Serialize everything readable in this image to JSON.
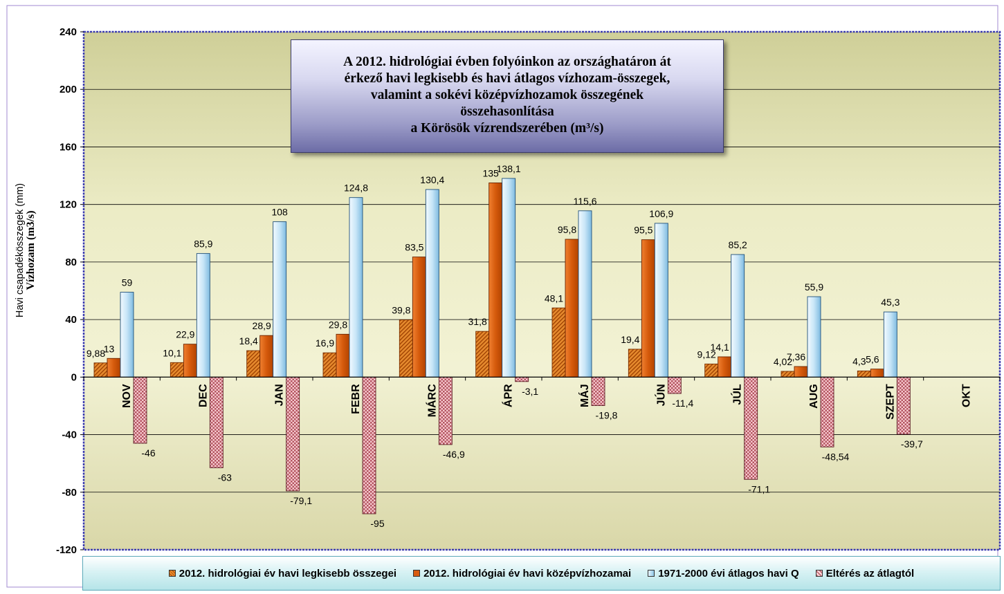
{
  "title_lines": [
    "A 2012. hidrológiai évben folyóinkon az országhatáron át",
    "érkező havi legkisebb és havi átlagos vízhozam-összegek,",
    "valamint a sokévi középvízhozamok összegének",
    "összehasonlítása",
    "a Körösök vízrendszerében  (m³/s)"
  ],
  "chart_data": {
    "type": "bar",
    "ylabel_lines": [
      "Havi csapadékösszegek (mm)",
      "Vízhozam (m3/s)"
    ],
    "xlabel": "",
    "ylim": [
      -120,
      240
    ],
    "y_ticks": [
      240,
      200,
      160,
      120,
      80,
      40,
      0,
      -40,
      -80,
      -120
    ],
    "grid": true,
    "legend_position": "bottom",
    "categories": [
      "NOV",
      "DEC",
      "JAN",
      "FEBR",
      "MÁRC",
      "ÁPR",
      "MÁJ",
      "JÚN",
      "JÚL",
      "AUG",
      "SZEPT",
      "OKT"
    ],
    "series": [
      {
        "name": "2012. hidrológiai év havi legkisebb összegei",
        "values": [
          9.88,
          10.1,
          18.4,
          16.9,
          39.8,
          31.8,
          48.1,
          19.4,
          9.12,
          4.02,
          4.3,
          null
        ],
        "labels": [
          "9,88",
          "10,1",
          "18,4",
          "16,9",
          "39,8",
          "31,8",
          "48,1",
          "19,4",
          "9,12",
          "4,02",
          "4,3",
          ""
        ],
        "color": "#e58a2e"
      },
      {
        "name": "2012. hidrológiai év havi középvízhozamai",
        "values": [
          13,
          22.9,
          28.9,
          29.8,
          83.5,
          135,
          95.8,
          95.5,
          14.1,
          7.36,
          5.6,
          null
        ],
        "labels": [
          "13",
          "22,9",
          "28,9",
          "29,8",
          "83,5",
          "135",
          "95,8",
          "95,5",
          "14,1",
          "7,36",
          "5,6",
          ""
        ],
        "color": "#d85c10"
      },
      {
        "name": "1971-2000 évi átlagos havi Q",
        "values": [
          59,
          85.9,
          108,
          124.8,
          130.4,
          138.1,
          115.6,
          106.9,
          85.2,
          55.9,
          45.3,
          null
        ],
        "labels": [
          "59",
          "85,9",
          "108",
          "124,8",
          "130,4",
          "138,1",
          "115,6",
          "106,9",
          "85,2",
          "55,9",
          "45,3",
          ""
        ],
        "color": "#bfe3f7"
      },
      {
        "name": "Eltérés az átlagtól",
        "values": [
          -46,
          -63,
          -79.1,
          -95,
          -46.9,
          -3.1,
          -19.8,
          -11.4,
          -71.1,
          -48.54,
          -39.7,
          null
        ],
        "labels": [
          "-46",
          "-63",
          "-79,1",
          "-95",
          "-46,9",
          "-3,1",
          "-19,8",
          "-11,4",
          "-71,1",
          "-48,54",
          "-39,7",
          ""
        ],
        "color": "#c0707a"
      }
    ]
  },
  "colors": {
    "plot_background": "#d8d6a4",
    "plot_border": "#3a3ab0",
    "gridline": "#000000"
  }
}
